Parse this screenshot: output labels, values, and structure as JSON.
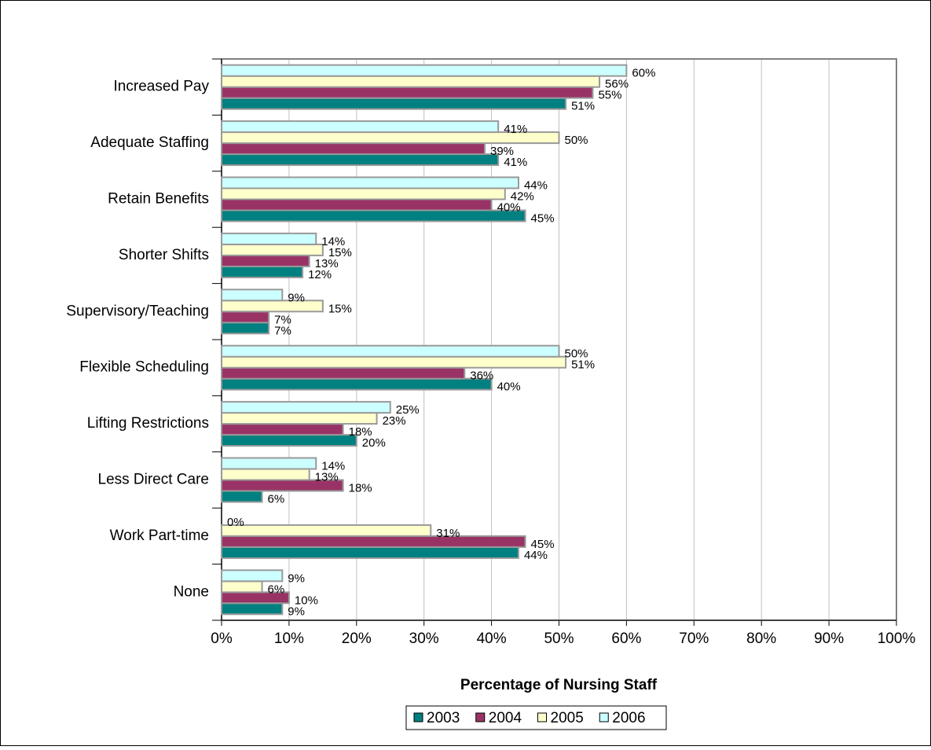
{
  "chart_data": {
    "type": "barh",
    "x_label": "Percentage of Nursing Staff",
    "categories": [
      "Increased Pay",
      "Adequate Staffing",
      "Retain Benefits",
      "Shorter Shifts",
      "Supervisory/Teaching",
      "Flexible Scheduling",
      "Lifting Restrictions",
      "Less Direct Care",
      "Work Part-time",
      "None"
    ],
    "series": [
      {
        "name": "2003",
        "color": "#008080",
        "values": [
          51,
          41,
          45,
          12,
          7,
          40,
          20,
          6,
          44,
          9
        ],
        "value_labels": [
          "51%",
          "41%",
          "45%",
          "12%",
          "7%",
          "40%",
          "20%",
          "6%",
          "44%",
          "9%"
        ]
      },
      {
        "name": "2004",
        "color": "#993366",
        "values": [
          55,
          39,
          40,
          13,
          7,
          36,
          18,
          18,
          45,
          10
        ],
        "value_labels": [
          "55%",
          "39%",
          "40%",
          "13%",
          "7%",
          "36%",
          "18%",
          "18%",
          "45%",
          "10%"
        ]
      },
      {
        "name": "2005",
        "color": "#FFFFCC",
        "values": [
          56,
          50,
          42,
          15,
          15,
          51,
          23,
          13,
          31,
          6
        ],
        "value_labels": [
          "56%",
          "50%",
          "42%",
          "15%",
          "15%",
          "51%",
          "23%",
          "13%",
          "31%",
          "6%"
        ]
      },
      {
        "name": "2006",
        "color": "#CCFFFF",
        "values": [
          60,
          41,
          44,
          14,
          9,
          50,
          25,
          14,
          0,
          9
        ],
        "value_labels": [
          "60%",
          "41%",
          "44%",
          "14%",
          "9%",
          "50%",
          "25%",
          "14%",
          "0%",
          "9%"
        ]
      }
    ],
    "xlim": [
      0,
      100
    ],
    "xticks": [
      {
        "value": 0,
        "label": "0%"
      },
      {
        "value": 10,
        "label": "10%"
      },
      {
        "value": 20,
        "label": "20%"
      },
      {
        "value": 30,
        "label": "30%"
      },
      {
        "value": 40,
        "label": "40%"
      },
      {
        "value": 50,
        "label": "50%"
      },
      {
        "value": 60,
        "label": "60%"
      },
      {
        "value": 70,
        "label": "70%"
      },
      {
        "value": 80,
        "label": "80%"
      },
      {
        "value": 90,
        "label": "90%"
      },
      {
        "value": 100,
        "label": "100%"
      }
    ],
    "grid": true,
    "legend": "bottom"
  }
}
